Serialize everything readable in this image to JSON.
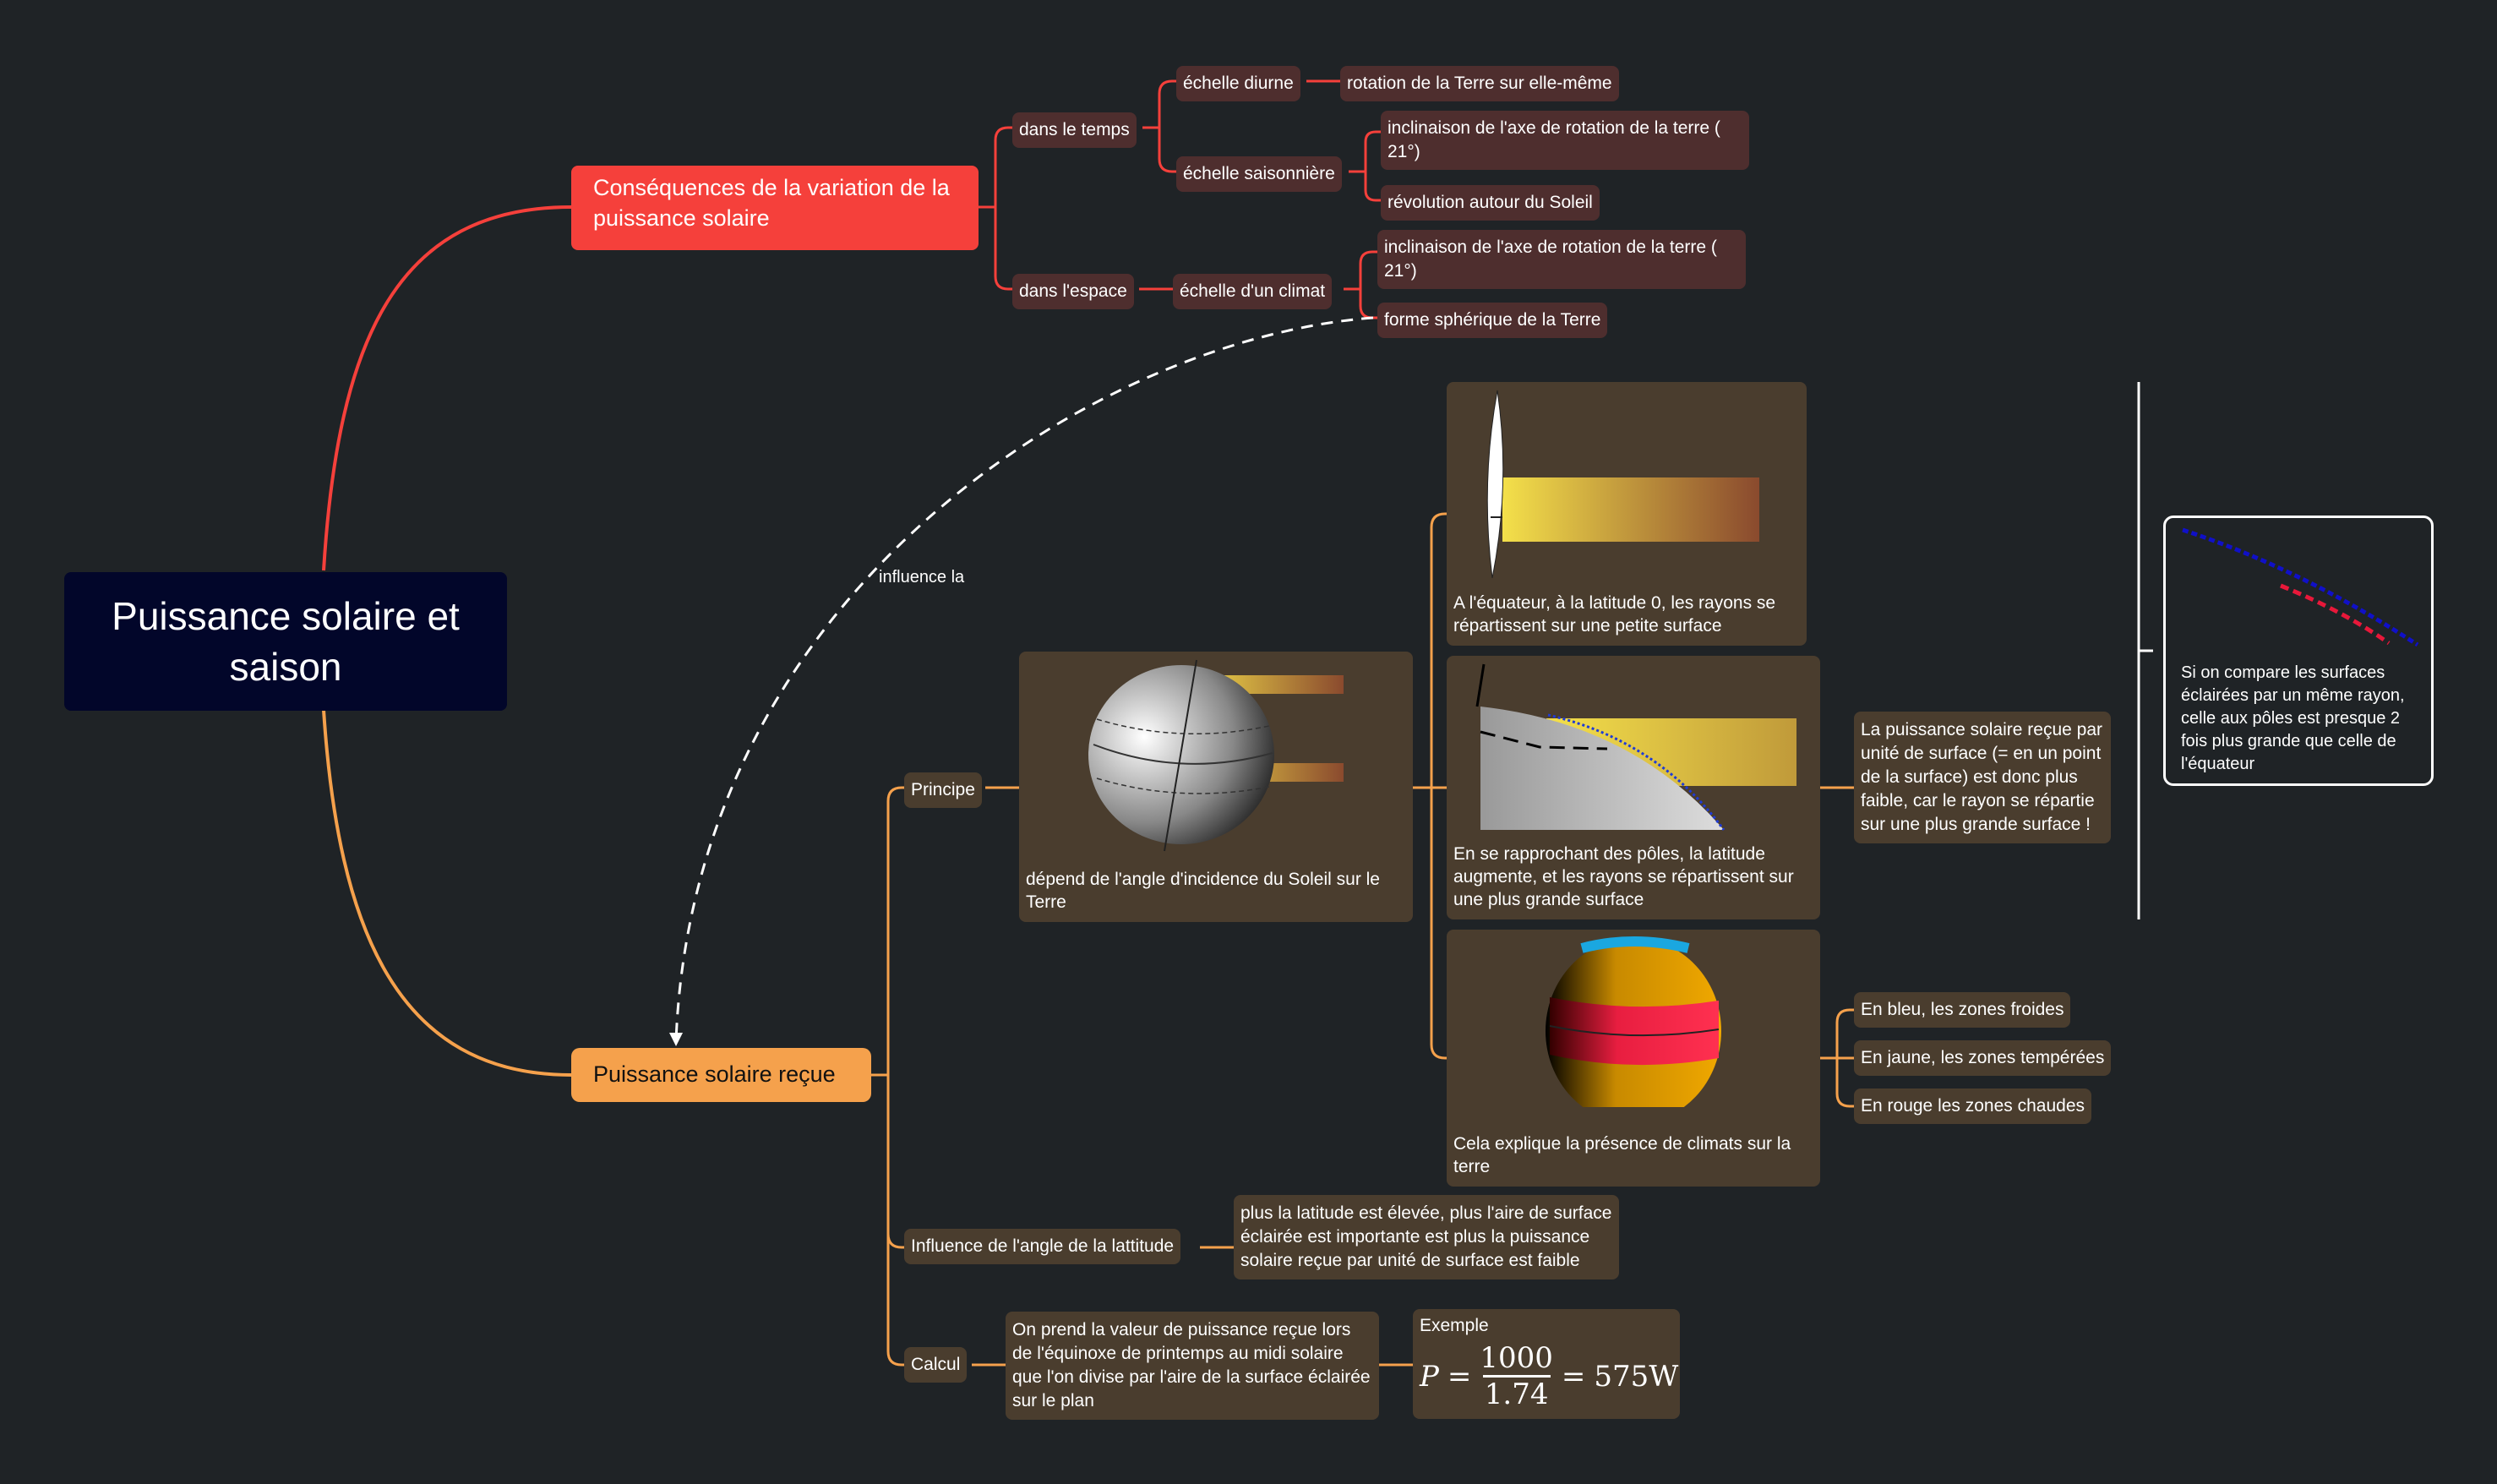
{
  "central": {
    "title": "Puissance solaire et saison"
  },
  "consequences": {
    "title": "Conséquences de la variation de la puissance solaire",
    "temps": {
      "label": "dans le temps",
      "diurne": {
        "label": "échelle diurne",
        "child": "rotation de la Terre sur elle-même"
      },
      "saison": {
        "label": "échelle saisonnière",
        "child1": "inclinaison de l'axe de rotation de la terre ( 21°)",
        "child2": "révolution autour du Soleil"
      }
    },
    "espace": {
      "label": "dans l'espace",
      "climat": {
        "label": "échelle d'un climat",
        "child1": "inclinaison de l'axe de rotation de la terre ( 21°)",
        "child2": "forme sphérique de la Terre"
      }
    }
  },
  "relation": {
    "label": "influence la"
  },
  "puissance": {
    "title": "Puissance solaire reçue",
    "principe": {
      "label": "Principe",
      "card_text": "dépend de l'angle d'incidence du Soleil sur le Terre",
      "equateur": "A l'équateur, à la latitude 0, les rayons se répartissent sur une petite surface",
      "poles": "En se rapprochant des pôles, la latitude augmente, et les rayons se répartissent sur une plus grande surface",
      "climats": "Cela explique la présence de climats sur la terre",
      "conclusion": "La puissance solaire reçue par unité de surface (= en un point de la surface) est donc plus faible, car le rayon se répartie sur une plus grande surface !",
      "comparaison": "Si on compare les surfaces éclairées par un même rayon, celle aux pôles est presque 2 fois plus grande que celle de l'équateur",
      "zones": [
        "En bleu, les zones froides",
        "En jaune, les zones tempérées",
        "En rouge les zones chaudes"
      ]
    },
    "influence": {
      "label": "Influence de l'angle de la lattitude",
      "text": "plus la latitude est élevée, plus l'aire de surface éclairée est importante est plus la puissance solaire reçue par unité de surface est faible"
    },
    "calcul": {
      "label": "Calcul",
      "text": "On prend la valeur de puissance reçue lors de l'équinoxe de printemps au midi solaire que l'on divise par l'aire de la surface éclairée sur le plan",
      "exemple": {
        "label": "Exemple",
        "var": "P",
        "eq1": "=",
        "num": "1000",
        "den": "1.74",
        "eq2": "=",
        "result": "575W"
      }
    }
  },
  "colors": {
    "background": "#1f2326",
    "red": "#f5403b",
    "orange": "#f5a14c",
    "central": "#02062a"
  }
}
